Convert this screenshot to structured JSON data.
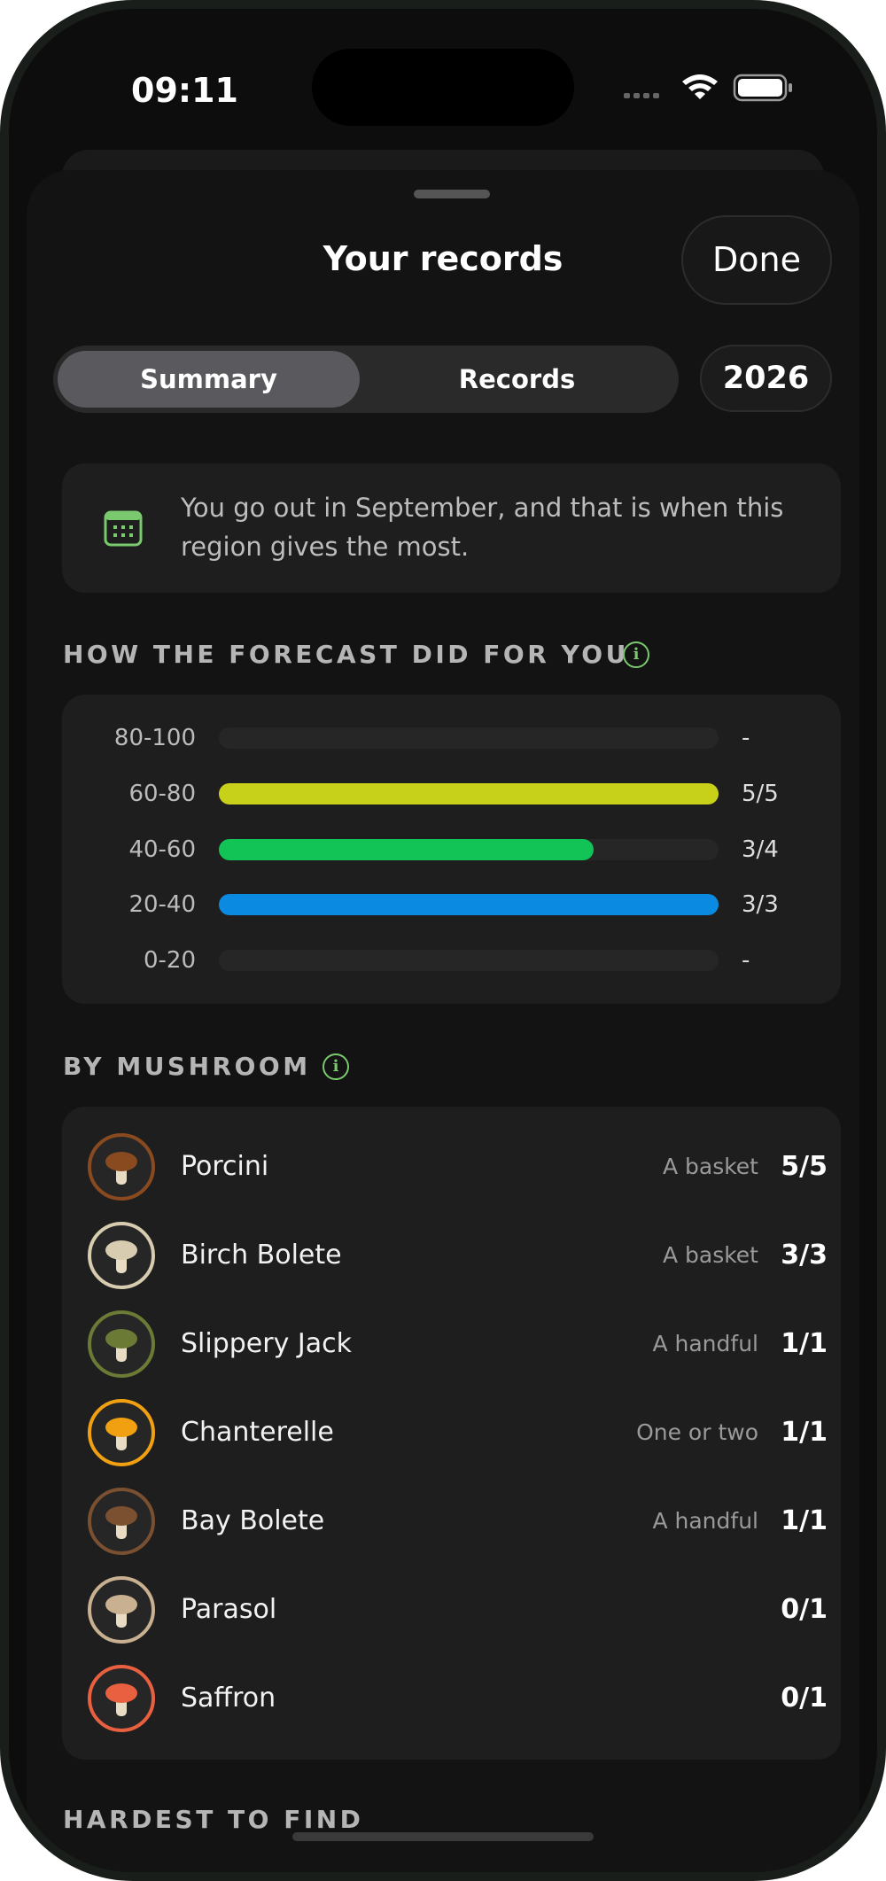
{
  "status": {
    "time": "09:11"
  },
  "sheet": {
    "title": "Your records",
    "done": "Done"
  },
  "tabs": [
    "Summary",
    "Records"
  ],
  "year": "2026",
  "insight": "You go out in September, and that is when this region gives the most.",
  "forecast": {
    "heading": "HOW THE FORECAST DID FOR YOU",
    "rows": [
      {
        "range": "80-100",
        "label": "-",
        "hits": null,
        "total": null,
        "color": "#c8d11a"
      },
      {
        "range": "60-80",
        "label": "5/5",
        "hits": 5,
        "total": 5,
        "color": "#c8d11a"
      },
      {
        "range": "40-60",
        "label": "3/4",
        "hits": 3,
        "total": 4,
        "color": "#12c455"
      },
      {
        "range": "20-40",
        "label": "3/3",
        "hits": 3,
        "total": 3,
        "color": "#0a8ae0"
      },
      {
        "range": "0-20",
        "label": "-",
        "hits": null,
        "total": null,
        "color": "#0a8ae0"
      }
    ]
  },
  "mushrooms": {
    "heading": "BY MUSHROOM",
    "rows": [
      {
        "name": "Porcini",
        "amount": "A basket",
        "count": "5/5",
        "ring": "#8a4a1f"
      },
      {
        "name": "Birch Bolete",
        "amount": "A basket",
        "count": "3/3",
        "ring": "#d8ccb0"
      },
      {
        "name": "Slippery Jack",
        "amount": "A handful",
        "count": "1/1",
        "ring": "#6b7a35"
      },
      {
        "name": "Chanterelle",
        "amount": "One or two",
        "count": "1/1",
        "ring": "#f0a010"
      },
      {
        "name": "Bay Bolete",
        "amount": "A handful",
        "count": "1/1",
        "ring": "#7a5030"
      },
      {
        "name": "Parasol",
        "amount": null,
        "count": "0/1",
        "ring": "#c8b090"
      },
      {
        "name": "Saffron",
        "amount": null,
        "count": "0/1",
        "ring": "#e86040"
      }
    ]
  },
  "next_heading": "HARDEST TO FIND"
}
